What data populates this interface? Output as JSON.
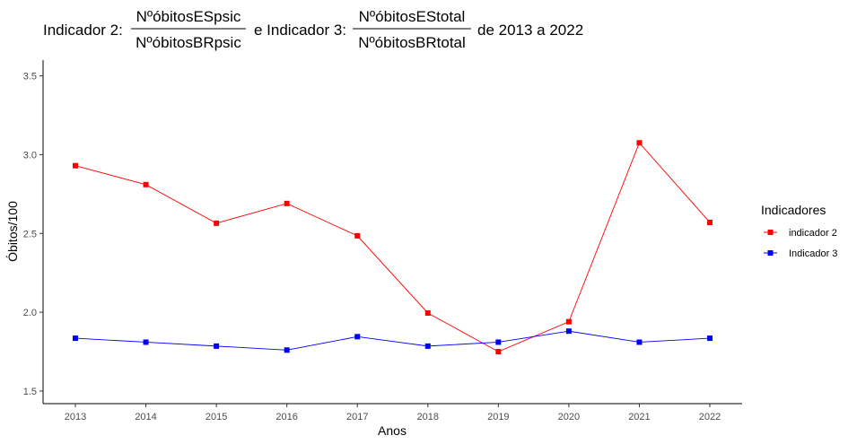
{
  "chart_data": {
    "type": "line",
    "title": {
      "prefix": "Indicador 2:",
      "frac1_num": "NºóbitosESpsic",
      "frac1_den": "NºóbitosBRpsic",
      "middle": "e Indicador 3:",
      "frac2_num": "NºóbitosEStotal",
      "frac2_den": "NºóbitosBRtotal",
      "suffix": "de 2013 a 2022"
    },
    "xlabel": "Anos",
    "ylabel": "Óbitos/100",
    "categories": [
      "2013",
      "2014",
      "2015",
      "2016",
      "2017",
      "2018",
      "2019",
      "2020",
      "2021",
      "2022"
    ],
    "yticks": [
      "1.5",
      "2.0",
      "2.5",
      "3.0",
      "3.5"
    ],
    "ylim": [
      1.42,
      3.6
    ],
    "grid": false,
    "legend": {
      "title": "Indicadores",
      "position": "right"
    },
    "series": [
      {
        "name": "indicador 2",
        "color": "#ff0000",
        "marker": "square",
        "values": [
          2.93,
          2.81,
          2.565,
          2.69,
          2.485,
          1.995,
          1.75,
          1.94,
          3.075,
          2.57
        ]
      },
      {
        "name": "Indicador 3",
        "color": "#0000ff",
        "marker": "square",
        "values": [
          1.835,
          1.81,
          1.785,
          1.76,
          1.845,
          1.785,
          1.81,
          1.88,
          1.81,
          1.835
        ]
      }
    ]
  }
}
